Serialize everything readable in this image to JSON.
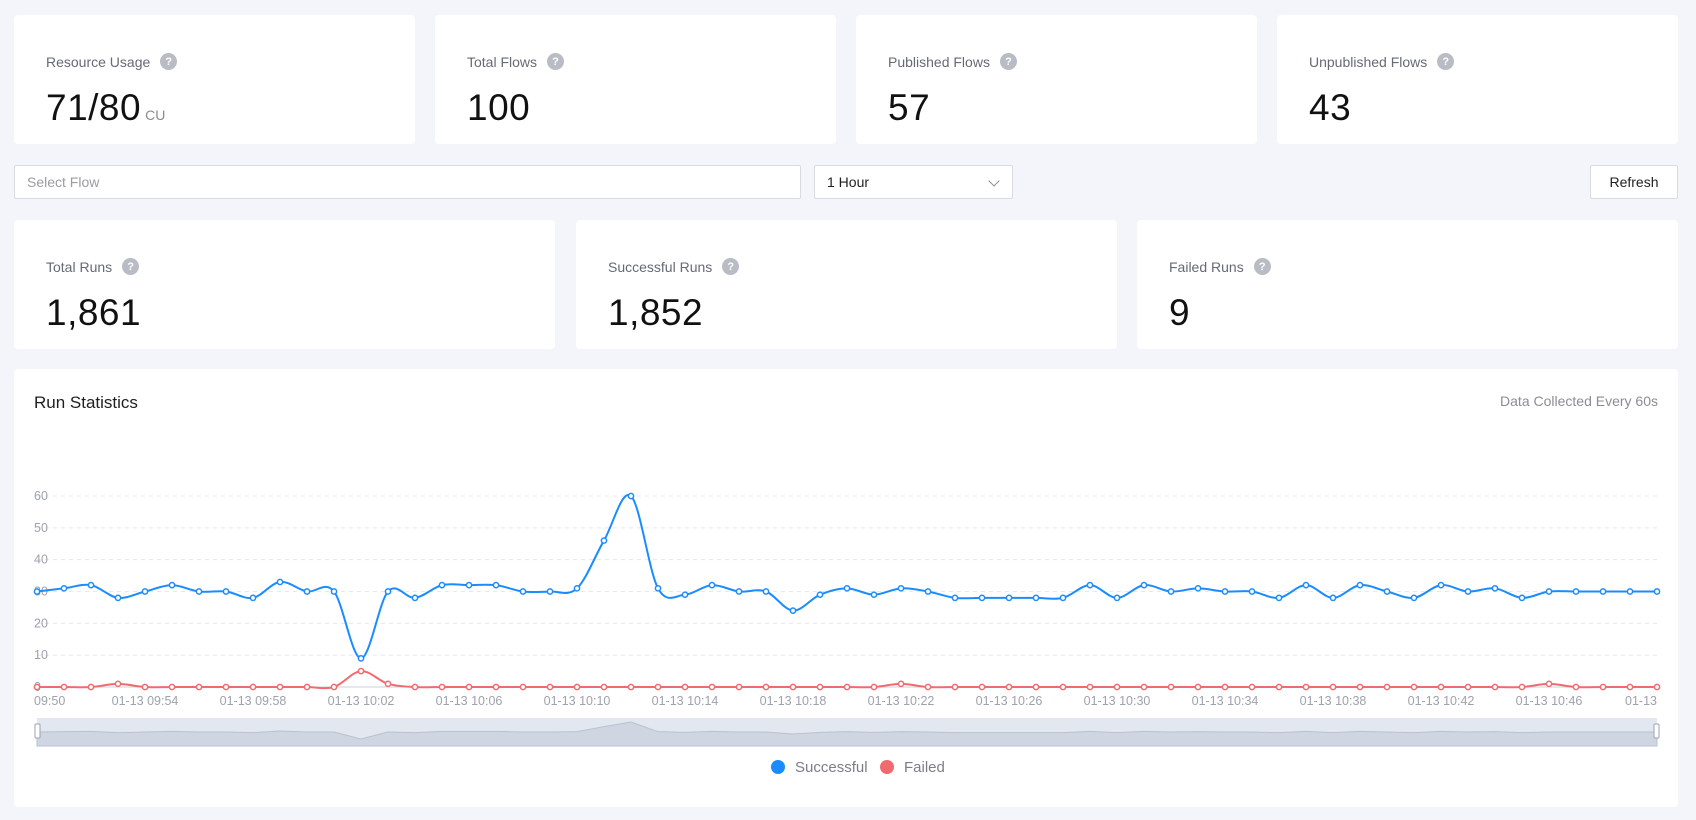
{
  "summary": [
    {
      "label": "Resource Usage",
      "value": "71/80",
      "unit": "CU"
    },
    {
      "label": "Total Flows",
      "value": "100"
    },
    {
      "label": "Published Flows",
      "value": "57"
    },
    {
      "label": "Unpublished Flows",
      "value": "43"
    }
  ],
  "help_glyph": "?",
  "filters": {
    "flow_placeholder": "Select Flow",
    "time_range": "1 Hour",
    "refresh_label": "Refresh"
  },
  "runs": [
    {
      "label": "Total Runs",
      "value": "1,861"
    },
    {
      "label": "Successful Runs",
      "value": "1,852"
    },
    {
      "label": "Failed Runs",
      "value": "9"
    }
  ],
  "chart_panel": {
    "title": "Run Statistics",
    "note": "Data Collected Every 60s"
  },
  "chart_data": {
    "type": "line",
    "x": [
      "01-13 09:50",
      "01-13 09:51",
      "01-13 09:52",
      "01-13 09:53",
      "01-13 09:54",
      "01-13 09:55",
      "01-13 09:56",
      "01-13 09:57",
      "01-13 09:58",
      "01-13 09:59",
      "01-13 10:00",
      "01-13 10:01",
      "01-13 10:02",
      "01-13 10:03",
      "01-13 10:04",
      "01-13 10:05",
      "01-13 10:06",
      "01-13 10:07",
      "01-13 10:08",
      "01-13 10:09",
      "01-13 10:10",
      "01-13 10:11",
      "01-13 10:12",
      "01-13 10:13",
      "01-13 10:14",
      "01-13 10:15",
      "01-13 10:16",
      "01-13 10:17",
      "01-13 10:18",
      "01-13 10:19",
      "01-13 10:20",
      "01-13 10:21",
      "01-13 10:22",
      "01-13 10:23",
      "01-13 10:24",
      "01-13 10:25",
      "01-13 10:26",
      "01-13 10:27",
      "01-13 10:28",
      "01-13 10:29",
      "01-13 10:30",
      "01-13 10:31",
      "01-13 10:32",
      "01-13 10:33",
      "01-13 10:34",
      "01-13 10:35",
      "01-13 10:36",
      "01-13 10:37",
      "01-13 10:38",
      "01-13 10:39",
      "01-13 10:40",
      "01-13 10:41",
      "01-13 10:42",
      "01-13 10:43",
      "01-13 10:44",
      "01-13 10:45",
      "01-13 10:46",
      "01-13 10:47",
      "01-13 10:48",
      "01-13 10:49",
      "01-13 10:50"
    ],
    "x_tick_labels": [
      "09:50",
      "01-13 09:54",
      "01-13 09:58",
      "01-13 10:02",
      "01-13 10:06",
      "01-13 10:10",
      "01-13 10:14",
      "01-13 10:18",
      "01-13 10:22",
      "01-13 10:26",
      "01-13 10:30",
      "01-13 10:34",
      "01-13 10:38",
      "01-13 10:42",
      "01-13 10:46",
      "01-13"
    ],
    "y_ticks": [
      "0",
      "10",
      "20",
      "30",
      "40",
      "50",
      "60"
    ],
    "ylim": [
      0,
      60
    ],
    "grid": true,
    "legend_position": "bottom-center",
    "series": [
      {
        "name": "Successful",
        "color": "#1a8cff",
        "values": [
          30,
          31,
          32,
          28,
          30,
          32,
          30,
          30,
          28,
          33,
          30,
          30,
          9,
          30,
          28,
          32,
          32,
          32,
          30,
          30,
          31,
          46,
          60,
          31,
          29,
          32,
          30,
          30,
          24,
          29,
          31,
          29,
          31,
          30,
          28,
          28,
          28,
          28,
          28,
          32,
          28,
          32,
          30,
          31,
          30,
          30,
          28,
          32,
          28,
          32,
          30,
          28,
          32,
          30,
          31,
          28,
          30,
          30,
          30,
          30,
          30
        ]
      },
      {
        "name": "Failed",
        "color": "#f06b70",
        "values": [
          0,
          0,
          0,
          1,
          0,
          0,
          0,
          0,
          0,
          0,
          0,
          0,
          5,
          1,
          0,
          0,
          0,
          0,
          0,
          0,
          0,
          0,
          0,
          0,
          0,
          0,
          0,
          0,
          0,
          0,
          0,
          0,
          1,
          0,
          0,
          0,
          0,
          0,
          0,
          0,
          0,
          0,
          0,
          0,
          0,
          0,
          0,
          0,
          0,
          0,
          0,
          0,
          0,
          0,
          0,
          0,
          1,
          0,
          0,
          0,
          0
        ]
      }
    ]
  }
}
